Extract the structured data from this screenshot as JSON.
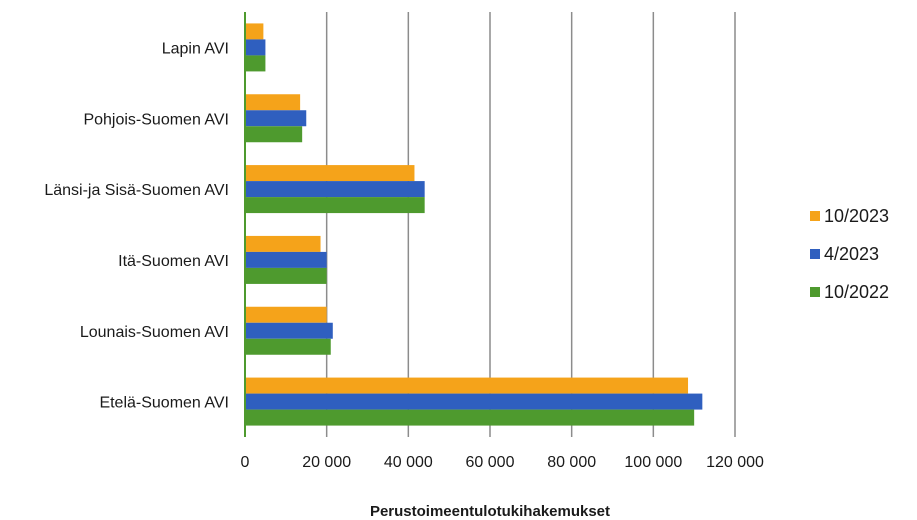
{
  "chart_data": {
    "type": "bar",
    "orientation": "horizontal",
    "title": "",
    "xlabel": "Perustoimeentulotukihakemukset",
    "ylabel": "",
    "categories": [
      "Etelä-Suomen AVI",
      "Lounais-Suomen AVI",
      "Itä-Suomen AVI",
      "Länsi-ja Sisä-Suomen AVI",
      "Pohjois-Suomen AVI",
      "Lapin AVI"
    ],
    "series": [
      {
        "name": "10/2023",
        "color": "#f5a31a",
        "values": [
          108500,
          20000,
          18500,
          41500,
          13500,
          4500
        ]
      },
      {
        "name": "4/2023",
        "color": "#2f5fbf",
        "values": [
          112000,
          21500,
          20000,
          44000,
          15000,
          5000
        ]
      },
      {
        "name": "10/2022",
        "color": "#4e9a2e",
        "values": [
          110000,
          21000,
          20000,
          44000,
          14000,
          5000
        ]
      }
    ],
    "xlim": [
      0,
      120000
    ],
    "xticks": [
      0,
      20000,
      40000,
      60000,
      80000,
      100000,
      120000
    ],
    "xtick_labels": [
      "0",
      "20 000",
      "40 000",
      "60 000",
      "80 000",
      "100 000",
      "120 000"
    ],
    "grid": true,
    "legend_position": "right"
  }
}
